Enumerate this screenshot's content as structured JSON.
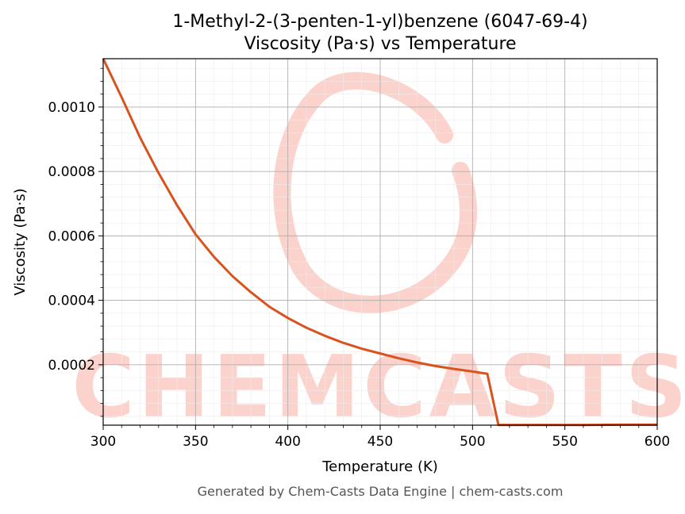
{
  "chart_data": {
    "type": "line",
    "title_line1": "1-Methyl-2-(3-penten-1-yl)benzene (6047-69-4)",
    "title_line2": "Viscosity (Pa·s) vs Temperature",
    "xlabel": "Temperature (K)",
    "ylabel": "Viscosity (Pa·s)",
    "xlim": [
      300,
      600
    ],
    "ylim": [
      1.25e-05,
      0.00115
    ],
    "x_ticks": [
      300,
      350,
      400,
      450,
      500,
      550,
      600
    ],
    "x_tick_labels": [
      "300",
      "350",
      "400",
      "450",
      "500",
      "550",
      "600"
    ],
    "y_ticks": [
      0.0002,
      0.0004,
      0.0006,
      0.0008,
      0.001
    ],
    "y_tick_labels": [
      "0.0002",
      "0.0004",
      "0.0006",
      "0.0008",
      "0.0010"
    ],
    "grid": true,
    "line_color": "#d9531e",
    "series": [
      {
        "x": [
          300,
          310,
          320,
          330,
          340,
          350,
          360,
          370,
          380,
          390,
          400,
          410,
          420,
          430,
          440,
          450,
          460,
          470,
          480,
          490,
          500,
          508,
          514,
          520,
          540,
          560,
          580,
          600
        ],
        "values": [
          0.001155,
          0.00103,
          0.000905,
          0.000795,
          0.000695,
          0.000605,
          0.000535,
          0.000475,
          0.000425,
          0.00038,
          0.000345,
          0.000315,
          0.00029,
          0.000268,
          0.00025,
          0.000235,
          0.00022,
          0.000207,
          0.000196,
          0.000187,
          0.000179,
          0.000172,
          1.3e-05,
          1.3e-05,
          1.3e-05,
          1.3e-05,
          1.4e-05,
          1.4e-05
        ]
      }
    ]
  },
  "watermark": {
    "text": "CHEMCASTS",
    "color": "#fbd3cc"
  },
  "footer": "Generated by Chem-Casts Data Engine | chem-casts.com"
}
